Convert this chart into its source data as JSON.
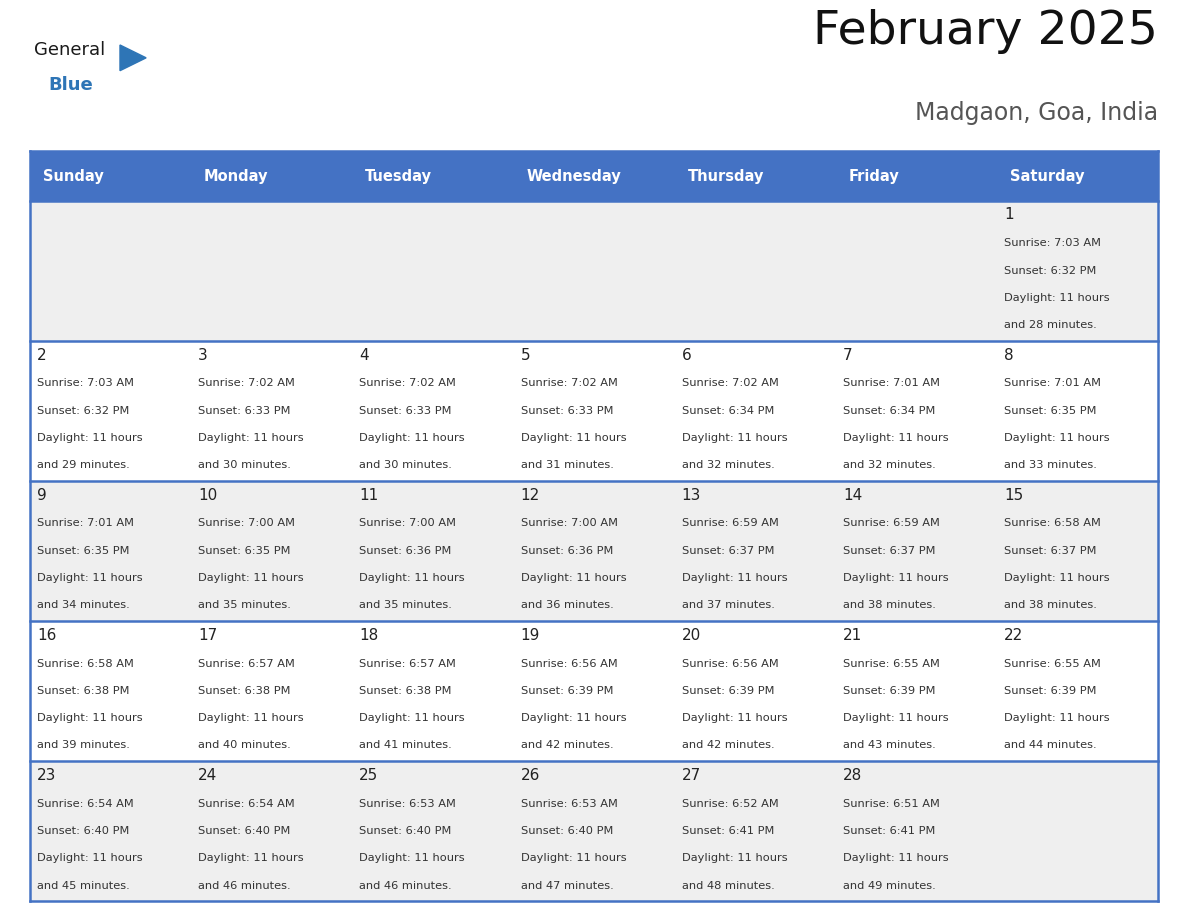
{
  "title": "February 2025",
  "subtitle": "Madgaon, Goa, India",
  "header_bg": "#4472C4",
  "header_text_color": "#FFFFFF",
  "weekdays": [
    "Sunday",
    "Monday",
    "Tuesday",
    "Wednesday",
    "Thursday",
    "Friday",
    "Saturday"
  ],
  "cell_bg_gray": "#EFEFEF",
  "cell_bg_white": "#FFFFFF",
  "border_color": "#4472C4",
  "text_color_dark": "#222222",
  "text_color_info": "#333333",
  "days_data": [
    {
      "day": 1,
      "col": 6,
      "row": 0,
      "sunrise": "7:03 AM",
      "sunset": "6:32 PM",
      "daylight": "11 hours",
      "daylight2": "and 28 minutes."
    },
    {
      "day": 2,
      "col": 0,
      "row": 1,
      "sunrise": "7:03 AM",
      "sunset": "6:32 PM",
      "daylight": "11 hours",
      "daylight2": "and 29 minutes."
    },
    {
      "day": 3,
      "col": 1,
      "row": 1,
      "sunrise": "7:02 AM",
      "sunset": "6:33 PM",
      "daylight": "11 hours",
      "daylight2": "and 30 minutes."
    },
    {
      "day": 4,
      "col": 2,
      "row": 1,
      "sunrise": "7:02 AM",
      "sunset": "6:33 PM",
      "daylight": "11 hours",
      "daylight2": "and 30 minutes."
    },
    {
      "day": 5,
      "col": 3,
      "row": 1,
      "sunrise": "7:02 AM",
      "sunset": "6:33 PM",
      "daylight": "11 hours",
      "daylight2": "and 31 minutes."
    },
    {
      "day": 6,
      "col": 4,
      "row": 1,
      "sunrise": "7:02 AM",
      "sunset": "6:34 PM",
      "daylight": "11 hours",
      "daylight2": "and 32 minutes."
    },
    {
      "day": 7,
      "col": 5,
      "row": 1,
      "sunrise": "7:01 AM",
      "sunset": "6:34 PM",
      "daylight": "11 hours",
      "daylight2": "and 32 minutes."
    },
    {
      "day": 8,
      "col": 6,
      "row": 1,
      "sunrise": "7:01 AM",
      "sunset": "6:35 PM",
      "daylight": "11 hours",
      "daylight2": "and 33 minutes."
    },
    {
      "day": 9,
      "col": 0,
      "row": 2,
      "sunrise": "7:01 AM",
      "sunset": "6:35 PM",
      "daylight": "11 hours",
      "daylight2": "and 34 minutes."
    },
    {
      "day": 10,
      "col": 1,
      "row": 2,
      "sunrise": "7:00 AM",
      "sunset": "6:35 PM",
      "daylight": "11 hours",
      "daylight2": "and 35 minutes."
    },
    {
      "day": 11,
      "col": 2,
      "row": 2,
      "sunrise": "7:00 AM",
      "sunset": "6:36 PM",
      "daylight": "11 hours",
      "daylight2": "and 35 minutes."
    },
    {
      "day": 12,
      "col": 3,
      "row": 2,
      "sunrise": "7:00 AM",
      "sunset": "6:36 PM",
      "daylight": "11 hours",
      "daylight2": "and 36 minutes."
    },
    {
      "day": 13,
      "col": 4,
      "row": 2,
      "sunrise": "6:59 AM",
      "sunset": "6:37 PM",
      "daylight": "11 hours",
      "daylight2": "and 37 minutes."
    },
    {
      "day": 14,
      "col": 5,
      "row": 2,
      "sunrise": "6:59 AM",
      "sunset": "6:37 PM",
      "daylight": "11 hours",
      "daylight2": "and 38 minutes."
    },
    {
      "day": 15,
      "col": 6,
      "row": 2,
      "sunrise": "6:58 AM",
      "sunset": "6:37 PM",
      "daylight": "11 hours",
      "daylight2": "and 38 minutes."
    },
    {
      "day": 16,
      "col": 0,
      "row": 3,
      "sunrise": "6:58 AM",
      "sunset": "6:38 PM",
      "daylight": "11 hours",
      "daylight2": "and 39 minutes."
    },
    {
      "day": 17,
      "col": 1,
      "row": 3,
      "sunrise": "6:57 AM",
      "sunset": "6:38 PM",
      "daylight": "11 hours",
      "daylight2": "and 40 minutes."
    },
    {
      "day": 18,
      "col": 2,
      "row": 3,
      "sunrise": "6:57 AM",
      "sunset": "6:38 PM",
      "daylight": "11 hours",
      "daylight2": "and 41 minutes."
    },
    {
      "day": 19,
      "col": 3,
      "row": 3,
      "sunrise": "6:56 AM",
      "sunset": "6:39 PM",
      "daylight": "11 hours",
      "daylight2": "and 42 minutes."
    },
    {
      "day": 20,
      "col": 4,
      "row": 3,
      "sunrise": "6:56 AM",
      "sunset": "6:39 PM",
      "daylight": "11 hours",
      "daylight2": "and 42 minutes."
    },
    {
      "day": 21,
      "col": 5,
      "row": 3,
      "sunrise": "6:55 AM",
      "sunset": "6:39 PM",
      "daylight": "11 hours",
      "daylight2": "and 43 minutes."
    },
    {
      "day": 22,
      "col": 6,
      "row": 3,
      "sunrise": "6:55 AM",
      "sunset": "6:39 PM",
      "daylight": "11 hours",
      "daylight2": "and 44 minutes."
    },
    {
      "day": 23,
      "col": 0,
      "row": 4,
      "sunrise": "6:54 AM",
      "sunset": "6:40 PM",
      "daylight": "11 hours",
      "daylight2": "and 45 minutes."
    },
    {
      "day": 24,
      "col": 1,
      "row": 4,
      "sunrise": "6:54 AM",
      "sunset": "6:40 PM",
      "daylight": "11 hours",
      "daylight2": "and 46 minutes."
    },
    {
      "day": 25,
      "col": 2,
      "row": 4,
      "sunrise": "6:53 AM",
      "sunset": "6:40 PM",
      "daylight": "11 hours",
      "daylight2": "and 46 minutes."
    },
    {
      "day": 26,
      "col": 3,
      "row": 4,
      "sunrise": "6:53 AM",
      "sunset": "6:40 PM",
      "daylight": "11 hours",
      "daylight2": "and 47 minutes."
    },
    {
      "day": 27,
      "col": 4,
      "row": 4,
      "sunrise": "6:52 AM",
      "sunset": "6:41 PM",
      "daylight": "11 hours",
      "daylight2": "and 48 minutes."
    },
    {
      "day": 28,
      "col": 5,
      "row": 4,
      "sunrise": "6:51 AM",
      "sunset": "6:41 PM",
      "daylight": "11 hours",
      "daylight2": "and 49 minutes."
    }
  ],
  "num_rows": 5,
  "num_cols": 7,
  "logo_general_color": "#1a1a1a",
  "logo_blue_color": "#2E75B6",
  "logo_triangle_color": "#2E75B6",
  "fig_width": 11.88,
  "fig_height": 9.18,
  "dpi": 100
}
